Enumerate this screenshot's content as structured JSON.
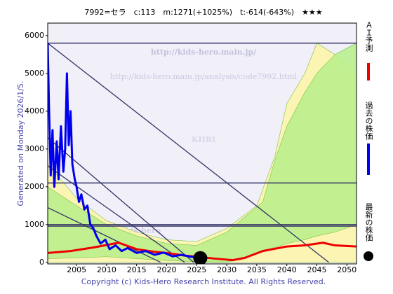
{
  "chart_data": {
    "type": "line",
    "title": "7992=セラ　c:113　m:1271(+1025%)　t:-614(-643%)　★★★",
    "y_label": "Generated on Monday 2026/1/5.",
    "footer": "Copyright (c) Kids-Hero Research Institute. All Rights Reserved.",
    "watermarks": [
      "http://kids-hero.main.jp/",
      "http://kids-hero.main.jp/analysis/code7992.html",
      "KHRI",
      "kids-hero"
    ],
    "xlim": [
      2000.2,
      2051.6
    ],
    "ylim": [
      -40,
      6330
    ],
    "xticks": [
      2005,
      2010,
      2015,
      2020,
      2025,
      2030,
      2035,
      2040,
      2045,
      2050
    ],
    "yticks": [
      0,
      1000,
      2000,
      3000,
      4000,
      5000,
      6000
    ],
    "hlines": [
      5800,
      2100,
      1000,
      960
    ],
    "trend_lines": [
      {
        "x": [
          2000.2,
          2047.0
        ],
        "values": [
          5800,
          0
        ]
      },
      {
        "x": [
          2000.2,
          2024.5
        ],
        "values": [
          3300,
          0
        ]
      },
      {
        "x": [
          2000.2,
          2023.0
        ],
        "values": [
          2550,
          0
        ]
      },
      {
        "x": [
          2000.2,
          2019.0
        ],
        "values": [
          1450,
          0
        ]
      }
    ],
    "bands": [
      {
        "color": "#fff6a8",
        "x": [
          2000.2,
          2005,
          2010,
          2015,
          2020,
          2025,
          2030,
          2035,
          2038,
          2040,
          2043,
          2045,
          2048,
          2051.6
        ],
        "upper": [
          2600,
          1700,
          1100,
          800,
          600,
          550,
          900,
          1500,
          2800,
          4200,
          5000,
          5800,
          5500,
          5000
        ],
        "lower": [
          0,
          0,
          0,
          0,
          0,
          0,
          0,
          0,
          0,
          0,
          0,
          0,
          0,
          0
        ]
      },
      {
        "color": "#b8f08a",
        "x": [
          2000.2,
          2005,
          2010,
          2015,
          2020,
          2025,
          2030,
          2033,
          2036,
          2038,
          2040,
          2043,
          2045,
          2048,
          2051.6
        ],
        "upper": [
          2000,
          1500,
          1000,
          700,
          500,
          450,
          800,
          1200,
          1600,
          2700,
          3600,
          4500,
          5000,
          5500,
          5800
        ],
        "lower": [
          100,
          120,
          150,
          100,
          50,
          20,
          10,
          100,
          300,
          400,
          500,
          600,
          700,
          800,
          1000
        ]
      }
    ],
    "series": [
      {
        "name": "ＡＩ予測",
        "color": "#ee0000",
        "x": [
          2000.2,
          2004,
          2008,
          2012,
          2015,
          2018,
          2020,
          2023,
          2025,
          2028,
          2031,
          2033,
          2036,
          2040,
          2043,
          2046,
          2048,
          2051.6
        ],
        "values": [
          250,
          300,
          400,
          520,
          350,
          280,
          250,
          180,
          150,
          100,
          60,
          120,
          300,
          420,
          450,
          520,
          450,
          420
        ]
      },
      {
        "name": "過去の株価",
        "color": "#0000ee",
        "x": [
          2000.2,
          2000.4,
          2000.7,
          2001.0,
          2001.3,
          2001.7,
          2002.0,
          2002.4,
          2002.8,
          2003.1,
          2003.4,
          2003.7,
          2004.0,
          2004.3,
          2004.7,
          2005.0,
          2005.4,
          2005.8,
          2006.3,
          2006.8,
          2007.3,
          2007.8,
          2008.3,
          2009.0,
          2009.8,
          2010.5,
          2011.5,
          2012.5,
          2013.5,
          2015.0,
          2016.5,
          2018.0,
          2019.5,
          2021.0,
          2022.5,
          2024.0,
          2025.6
        ],
        "values": [
          5800,
          4200,
          2300,
          3500,
          2000,
          3200,
          2200,
          3600,
          2400,
          3000,
          5000,
          3100,
          4000,
          2600,
          2200,
          2000,
          1600,
          1800,
          1400,
          1500,
          1000,
          900,
          700,
          500,
          600,
          350,
          450,
          300,
          380,
          250,
          300,
          200,
          260,
          160,
          200,
          150,
          113
        ]
      },
      {
        "name": "最新の株価",
        "color": "#000000",
        "x": [
          2025.6
        ],
        "values": [
          113
        ]
      }
    ]
  }
}
